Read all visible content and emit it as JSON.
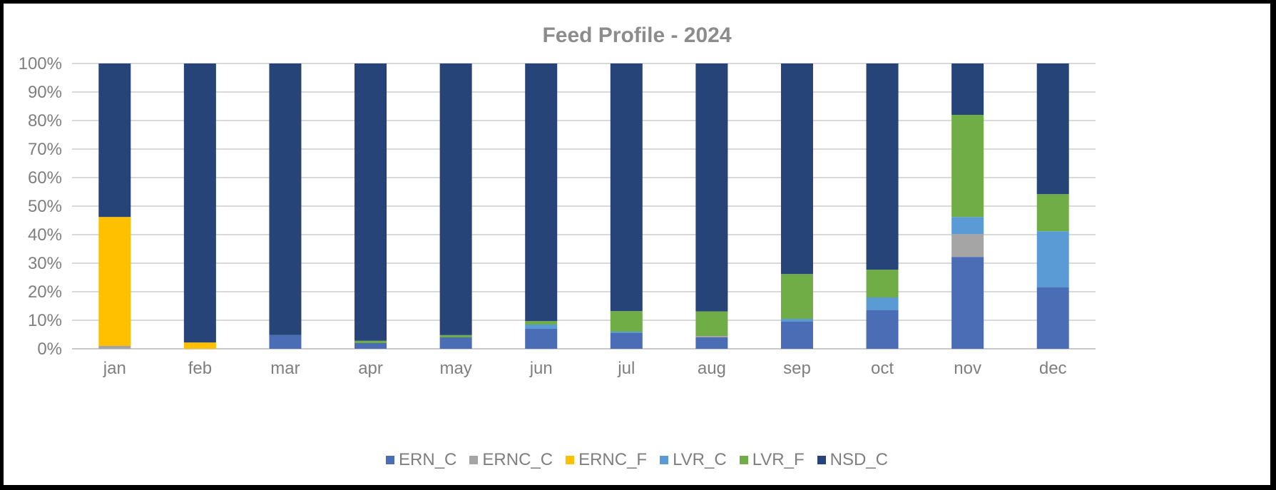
{
  "chart_data": {
    "type": "bar",
    "stacked": "percent",
    "title": "Feed Profile - 2024",
    "xlabel": "",
    "ylabel": "",
    "ylim": [
      0,
      100
    ],
    "y_ticks": [
      "0%",
      "10%",
      "20%",
      "30%",
      "40%",
      "50%",
      "60%",
      "70%",
      "80%",
      "90%",
      "100%"
    ],
    "grid": true,
    "legend_position": "bottom",
    "categories": [
      "jan",
      "feb",
      "mar",
      "apr",
      "may",
      "jun",
      "jul",
      "aug",
      "sep",
      "oct",
      "nov",
      "dec"
    ],
    "series": [
      {
        "name": "ERN_C",
        "color": "#4a6db5",
        "values": [
          0,
          0,
          4.8,
          2,
          4,
          7,
          5.5,
          4,
          9.5,
          13.5,
          32.2,
          21.5
        ]
      },
      {
        "name": "ERNC_C",
        "color": "#a5a5a5",
        "values": [
          1,
          0,
          0,
          0,
          0,
          0,
          0,
          0.5,
          0,
          0,
          8,
          0
        ]
      },
      {
        "name": "ERNC_F",
        "color": "#ffc000",
        "values": [
          45.2,
          2.2,
          0,
          0,
          0,
          0,
          0,
          0,
          0,
          0,
          0,
          0
        ]
      },
      {
        "name": "LVR_C",
        "color": "#5b9bd5",
        "values": [
          0,
          0,
          0,
          0,
          0,
          1.5,
          0.5,
          0,
          1,
          4.5,
          6,
          19.7
        ]
      },
      {
        "name": "LVR_F",
        "color": "#70ad47",
        "values": [
          0,
          0,
          0,
          0.8,
          0.8,
          1.2,
          7.2,
          8.6,
          15.7,
          9.7,
          35.8,
          13
        ]
      },
      {
        "name": "NSD_C",
        "color": "#264478",
        "values": [
          53.8,
          97.8,
          95.2,
          97.2,
          95.2,
          90.3,
          86.8,
          86.9,
          73.8,
          72.3,
          18,
          45.8
        ]
      }
    ]
  }
}
